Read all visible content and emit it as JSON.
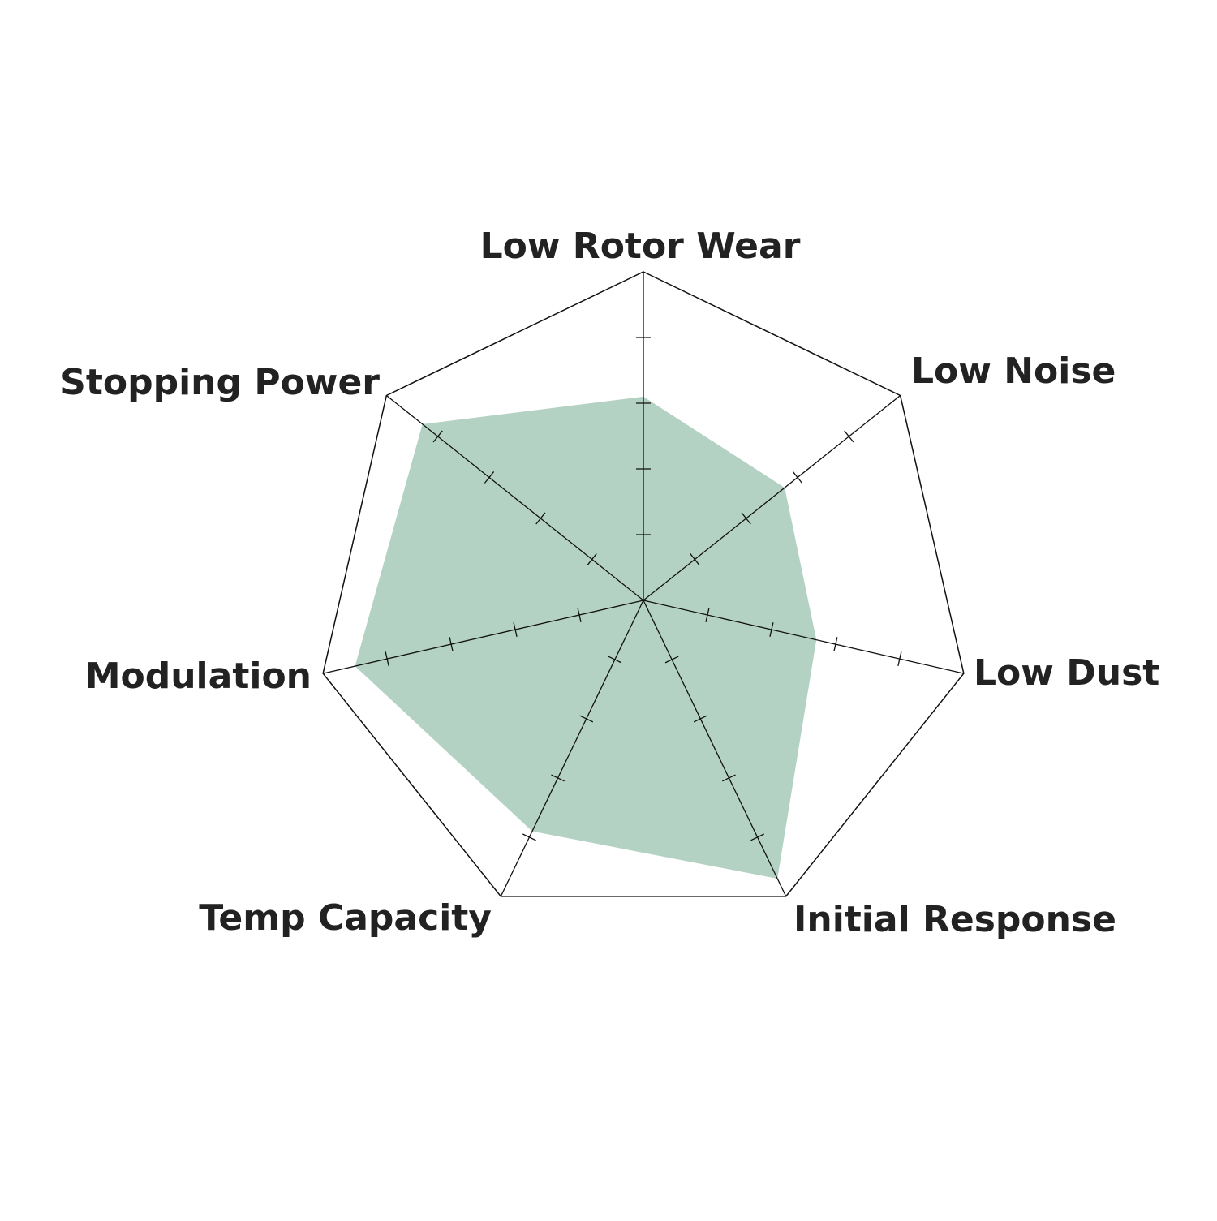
{
  "chart_data": {
    "type": "radar",
    "title": "",
    "axes": [
      "Low Rotor Wear",
      "Low Noise",
      "Low Dust",
      "Initial Response",
      "Temp Capacity",
      "Modulation",
      "Stopping Power"
    ],
    "values": [
      3.1,
      2.75,
      2.7,
      4.7,
      3.9,
      4.5,
      4.3
    ],
    "range": [
      0,
      5
    ],
    "ticks": [
      1,
      2,
      3,
      4,
      5
    ],
    "grid": true,
    "colors": {
      "fill": "#b4d2c4",
      "line": "#111111",
      "text": "#222222"
    }
  }
}
